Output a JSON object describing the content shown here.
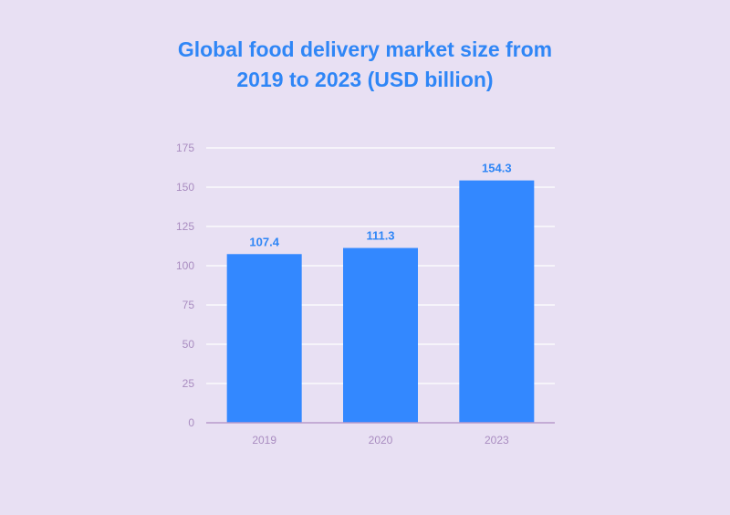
{
  "chart_data": {
    "type": "bar",
    "title": "Global food delivery market size from 2019 to 2023 (USD billion)",
    "title_lines": [
      "Global food delivery market size from",
      "2019 to 2023 (USD billion)"
    ],
    "categories": [
      "2019",
      "2020",
      "2023"
    ],
    "values": [
      107.4,
      111.3,
      154.3
    ],
    "value_labels": [
      "107.4",
      "111.3",
      "154.3"
    ],
    "xlabel": "",
    "ylabel": "",
    "ylim": [
      0,
      175
    ],
    "yticks": [
      "0",
      "25",
      "50",
      "75",
      "100",
      "125",
      "150",
      "175"
    ],
    "grid": true,
    "legend": "none"
  },
  "colors": {
    "background": "#e8e0f3",
    "bar": "#3388ff",
    "title": "#2f86f6",
    "value_label": "#2f86f6",
    "tick_label": "#a98cc0",
    "grid": "#ffffff",
    "axis": "#b79acb"
  }
}
